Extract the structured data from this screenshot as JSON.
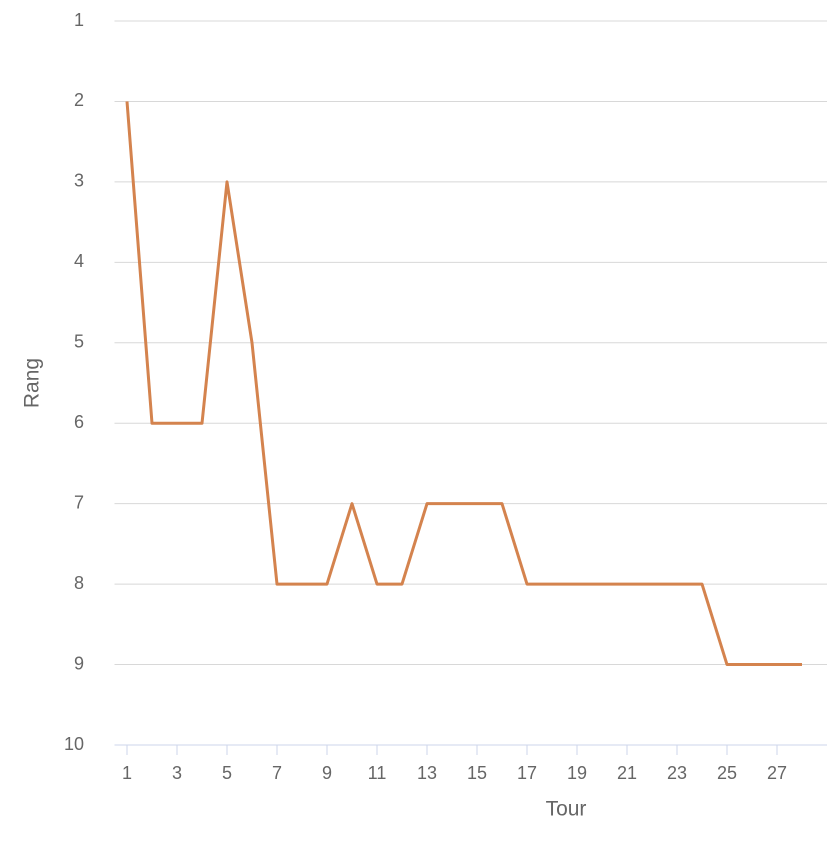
{
  "chart_data": {
    "type": "line",
    "x_label": "Tour",
    "y_label": "Rang",
    "x": [
      1,
      2,
      3,
      4,
      5,
      6,
      7,
      8,
      9,
      10,
      11,
      12,
      13,
      14,
      15,
      16,
      17,
      18,
      19,
      20,
      21,
      22,
      23,
      24,
      25,
      26,
      27,
      28
    ],
    "series": [
      {
        "color": "#d4834e",
        "values": [
          2,
          6,
          6,
          6,
          3,
          5,
          8,
          8,
          8,
          7,
          8,
          8,
          7,
          7,
          7,
          7,
          8,
          8,
          8,
          8,
          8,
          8,
          8,
          8,
          9,
          9,
          9,
          9
        ]
      }
    ],
    "xlim": [
      0.5,
      29
    ],
    "xticks": [
      1,
      3,
      5,
      7,
      9,
      11,
      13,
      15,
      17,
      19,
      21,
      23,
      25,
      27
    ],
    "ylim": [
      1,
      10
    ],
    "yticks": [
      1,
      2,
      3,
      4,
      5,
      6,
      7,
      8,
      9,
      10
    ],
    "y_reversed": true,
    "grid": true
  }
}
